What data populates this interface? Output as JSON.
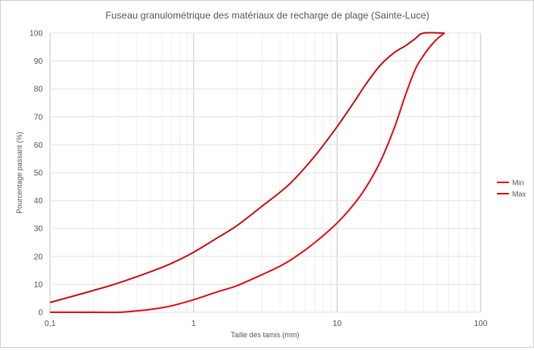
{
  "chart_data": {
    "type": "line",
    "title": "Fuseau granulométrique des matériaux de recharge de plage (Sainte-Luce)",
    "xlabel": "Taille des tamis (mm)",
    "ylabel": "Pourcentage passant (%)",
    "xscale": "log",
    "xlim": [
      0.1,
      100
    ],
    "ylim": [
      0,
      100
    ],
    "x_ticks": [
      "0,1",
      "1",
      "10",
      "100"
    ],
    "y_ticks": [
      "0",
      "10",
      "20",
      "30",
      "40",
      "50",
      "60",
      "70",
      "80",
      "90",
      "100"
    ],
    "grid": true,
    "legend_position": "right",
    "series": [
      {
        "name": "Min",
        "color": "#e8131b",
        "x": [
          0.1,
          0.2,
          0.3,
          0.4,
          0.5,
          0.7,
          1,
          1.5,
          2,
          3,
          4,
          5,
          7,
          10,
          13,
          16,
          20,
          25,
          30,
          35,
          40,
          45,
          50,
          56
        ],
        "y": [
          0,
          0,
          0,
          0.5,
          1,
          2.3,
          4.5,
          7.5,
          9.5,
          13.5,
          16.5,
          19.5,
          25,
          32,
          38.5,
          45,
          54,
          66,
          78,
          87,
          92,
          95.5,
          98,
          100
        ]
      },
      {
        "name": "Max",
        "color": "#c9171d",
        "x": [
          0.1,
          0.15,
          0.2,
          0.3,
          0.5,
          0.7,
          1,
          1.5,
          2,
          3,
          4,
          5,
          7,
          10,
          13,
          16,
          20,
          25,
          30,
          35,
          40,
          56
        ],
        "y": [
          3.5,
          6,
          7.8,
          10.5,
          14.5,
          17.5,
          21.5,
          27,
          31,
          38,
          43,
          47.5,
          56,
          66.5,
          75,
          82,
          88.5,
          93,
          95.5,
          98,
          100,
          100
        ]
      }
    ]
  }
}
